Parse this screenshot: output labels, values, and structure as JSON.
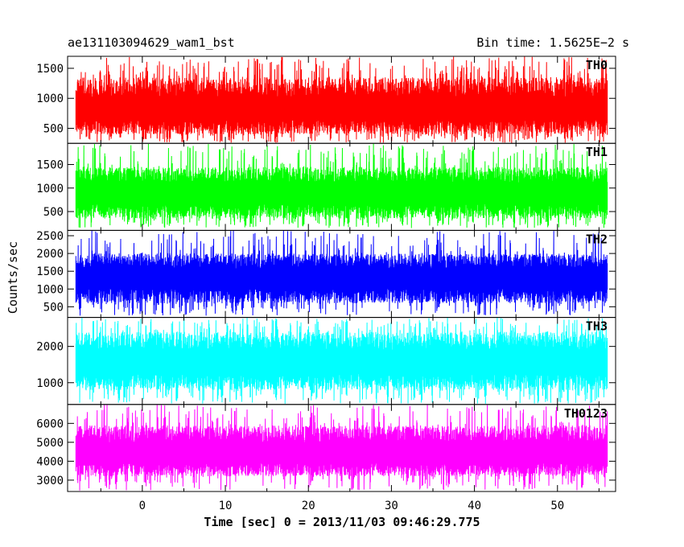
{
  "header": {
    "left_title": "ae131103094629_wam1_bst",
    "right_title": "Bin time: 1.5625E−2 s"
  },
  "chart_data": {
    "type": "line",
    "ylabel": "Counts/sec",
    "xlabel": "Time [sec] 0 = 2013/11/03 09:46:29.775",
    "xlim": [
      -9,
      57
    ],
    "data_x_range": [
      -8,
      56
    ],
    "bin_time_s": 0.015625,
    "x_ticks": [
      0,
      10,
      20,
      30,
      40,
      50
    ],
    "grid": false,
    "panels": [
      {
        "name": "TH0",
        "color": "#ff0000",
        "ylim": [
          250,
          1700
        ],
        "yticks": [
          500,
          1000,
          1500
        ],
        "mean": 800,
        "band_low": 400,
        "band_high": 1350,
        "spike_min": 260,
        "spike_max": 1700
      },
      {
        "name": "TH1",
        "color": "#00ff00",
        "ylim": [
          100,
          1950
        ],
        "yticks": [
          500,
          1000,
          1500
        ],
        "mean": 880,
        "band_low": 350,
        "band_high": 1450,
        "spike_min": 150,
        "spike_max": 1950
      },
      {
        "name": "TH2",
        "color": "#0000ff",
        "ylim": [
          200,
          2650
        ],
        "yticks": [
          500,
          1000,
          1500,
          2000,
          2500
        ],
        "mean": 1300,
        "band_low": 600,
        "band_high": 2000,
        "spike_min": 250,
        "spike_max": 2650
      },
      {
        "name": "TH3",
        "color": "#00ffff",
        "ylim": [
          400,
          2800
        ],
        "yticks": [
          1000,
          2000
        ],
        "mean": 1550,
        "band_low": 800,
        "band_high": 2400,
        "spike_min": 420,
        "spike_max": 2800
      },
      {
        "name": "TH0123",
        "color": "#ff00ff",
        "ylim": [
          2400,
          7000
        ],
        "yticks": [
          3000,
          4000,
          5000,
          6000
        ],
        "mean": 4400,
        "band_low": 3200,
        "band_high": 5900,
        "spike_min": 2450,
        "spike_max": 7000
      }
    ]
  }
}
